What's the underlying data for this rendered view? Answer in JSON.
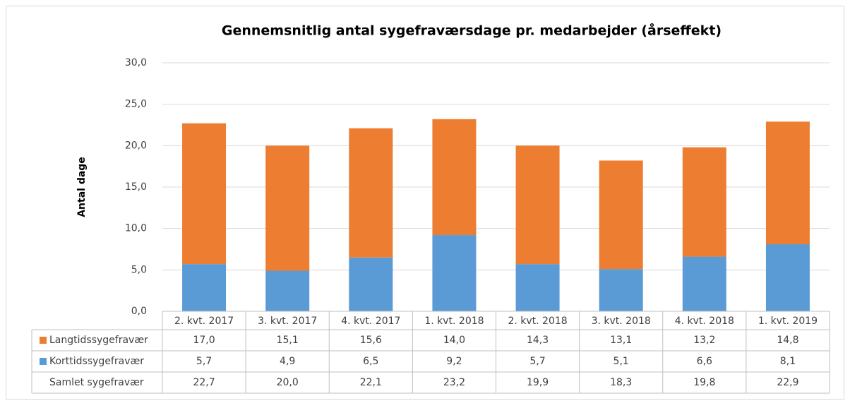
{
  "chart_data": {
    "type": "stacked_bar",
    "title": "Gennemsnitlig antal sygefraværsdage pr. medarbejder (årseffekt)",
    "y_label": "Antal dage",
    "categories": [
      "2. kvt. 2017",
      "3. kvt. 2017",
      "4. kvt. 2017",
      "1. kvt. 2018",
      "2. kvt. 2018",
      "3. kvt. 2018",
      "4. kvt. 2018",
      "1. kvt. 2019"
    ],
    "series": [
      {
        "name": "Korttidssygefravær",
        "color": "#5b9bd5",
        "values": [
          5.7,
          4.9,
          6.5,
          9.2,
          5.7,
          5.1,
          6.6,
          8.1
        ],
        "value_labels": [
          "5,7",
          "4,9",
          "6,5",
          "9,2",
          "5,7",
          "5,1",
          "6,6",
          "8,1"
        ]
      },
      {
        "name": "Langtidssygefravær",
        "color": "#ed7d31",
        "values": [
          17.0,
          15.1,
          15.6,
          14.0,
          14.3,
          13.1,
          13.2,
          14.8
        ],
        "value_labels": [
          "17,0",
          "15,1",
          "15,6",
          "14,0",
          "14,3",
          "13,1",
          "13,2",
          "14,8"
        ]
      }
    ],
    "totals": {
      "name": "Samlet sygefravær",
      "values": [
        22.7,
        20.0,
        22.1,
        23.2,
        19.9,
        18.3,
        19.8,
        22.9
      ],
      "value_labels": [
        "22,7",
        "20,0",
        "22,1",
        "23,2",
        "19,9",
        "18,3",
        "19,8",
        "22,9"
      ]
    },
    "ylim": [
      0,
      30
    ],
    "yticks": [
      {
        "value": 0,
        "label": "0,0"
      },
      {
        "value": 5,
        "label": "5,0"
      },
      {
        "value": 10,
        "label": "10,0"
      },
      {
        "value": 15,
        "label": "15,0"
      },
      {
        "value": 20,
        "label": "20,0"
      },
      {
        "value": 25,
        "label": "25,0"
      },
      {
        "value": 30,
        "label": "30,0"
      }
    ],
    "grid": true
  }
}
